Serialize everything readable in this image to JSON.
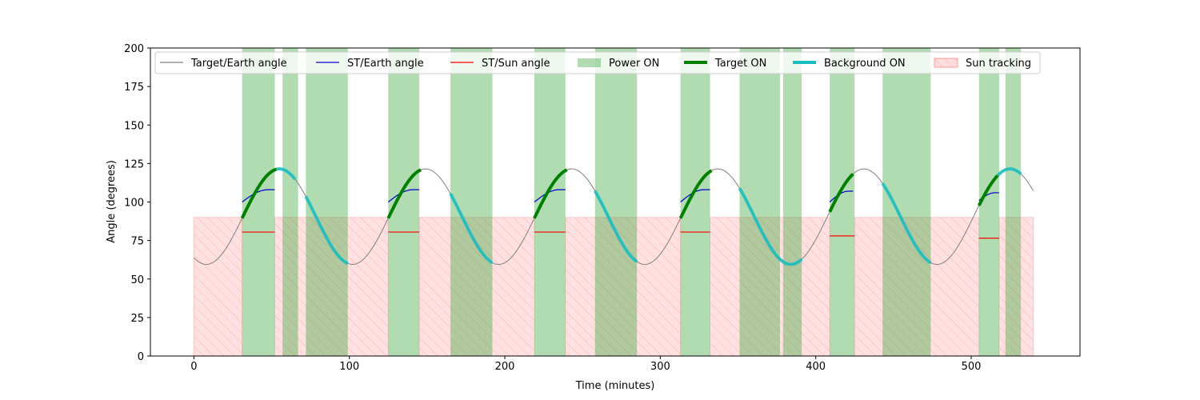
{
  "chart_data": {
    "type": "line",
    "xlabel": "Time (minutes)",
    "ylabel": "Angle (degrees)",
    "xlim": [
      -28,
      570
    ],
    "ylim": [
      0,
      200
    ],
    "xticks": [
      0,
      100,
      200,
      300,
      400,
      500
    ],
    "yticks": [
      0,
      25,
      50,
      75,
      100,
      125,
      150,
      175,
      200
    ],
    "legend_position": "top",
    "legend": [
      {
        "label": "Target/Earth angle",
        "kind": "line",
        "color": "#808080"
      },
      {
        "label": "ST/Earth angle",
        "kind": "line",
        "color": "#0000cc"
      },
      {
        "label": "ST/Sun angle",
        "kind": "line",
        "color": "#ff0000"
      },
      {
        "label": "Power ON",
        "kind": "patch",
        "color": "#2ca02c"
      },
      {
        "label": "Target ON",
        "kind": "thickline",
        "color": "#008000"
      },
      {
        "label": "Background ON",
        "kind": "thickline",
        "color": "#17bfbf"
      },
      {
        "label": "Sun tracking",
        "kind": "hatch",
        "color": "#ff9999"
      }
    ],
    "target_earth": {
      "t_start": 0,
      "t_end": 540,
      "period": 94,
      "mean": 90.5,
      "amplitude": 31,
      "min_time": 8
    },
    "power_on": [
      [
        31,
        52
      ],
      [
        57,
        67
      ],
      [
        72,
        99
      ],
      [
        125,
        145
      ],
      [
        165,
        192
      ],
      [
        219,
        239
      ],
      [
        258,
        285
      ],
      [
        313,
        332
      ],
      [
        351,
        377
      ],
      [
        379,
        391
      ],
      [
        409,
        425
      ],
      [
        443,
        474
      ],
      [
        505,
        518
      ],
      [
        522,
        532
      ]
    ],
    "target_on": [
      [
        31,
        53
      ],
      [
        125,
        146
      ],
      [
        219,
        240
      ],
      [
        313,
        333
      ],
      [
        409,
        424
      ],
      [
        505,
        517
      ]
    ],
    "background_on": [
      [
        53,
        65
      ],
      [
        72,
        99
      ],
      [
        165,
        192
      ],
      [
        258,
        285
      ],
      [
        351,
        391
      ],
      [
        443,
        474
      ],
      [
        517,
        532
      ]
    ],
    "st_earth": [
      {
        "t": [
          31,
          52
        ],
        "y": [
          100,
          108
        ]
      },
      {
        "t": [
          125,
          145
        ],
        "y": [
          100,
          108
        ]
      },
      {
        "t": [
          219,
          239
        ],
        "y": [
          100,
          108
        ]
      },
      {
        "t": [
          313,
          332
        ],
        "y": [
          100,
          108
        ]
      },
      {
        "t": [
          409,
          424
        ],
        "y": [
          100,
          107
        ]
      },
      {
        "t": [
          505,
          518
        ],
        "y": [
          101,
          106
        ]
      }
    ],
    "st_sun": [
      {
        "t": [
          31,
          52
        ],
        "y": 80.5
      },
      {
        "t": [
          125,
          145
        ],
        "y": 80.5
      },
      {
        "t": [
          219,
          239
        ],
        "y": 80.5
      },
      {
        "t": [
          313,
          332
        ],
        "y": 80.5
      },
      {
        "t": [
          409,
          425
        ],
        "y": 78
      },
      {
        "t": [
          505,
          518
        ],
        "y": 76.5
      }
    ],
    "sun_tracking": [
      [
        0,
        31
      ],
      [
        52,
        125
      ],
      [
        145,
        219
      ],
      [
        239,
        313
      ],
      [
        332,
        409
      ],
      [
        425,
        505
      ],
      [
        518,
        540
      ]
    ],
    "sun_tracking_level": 90
  }
}
